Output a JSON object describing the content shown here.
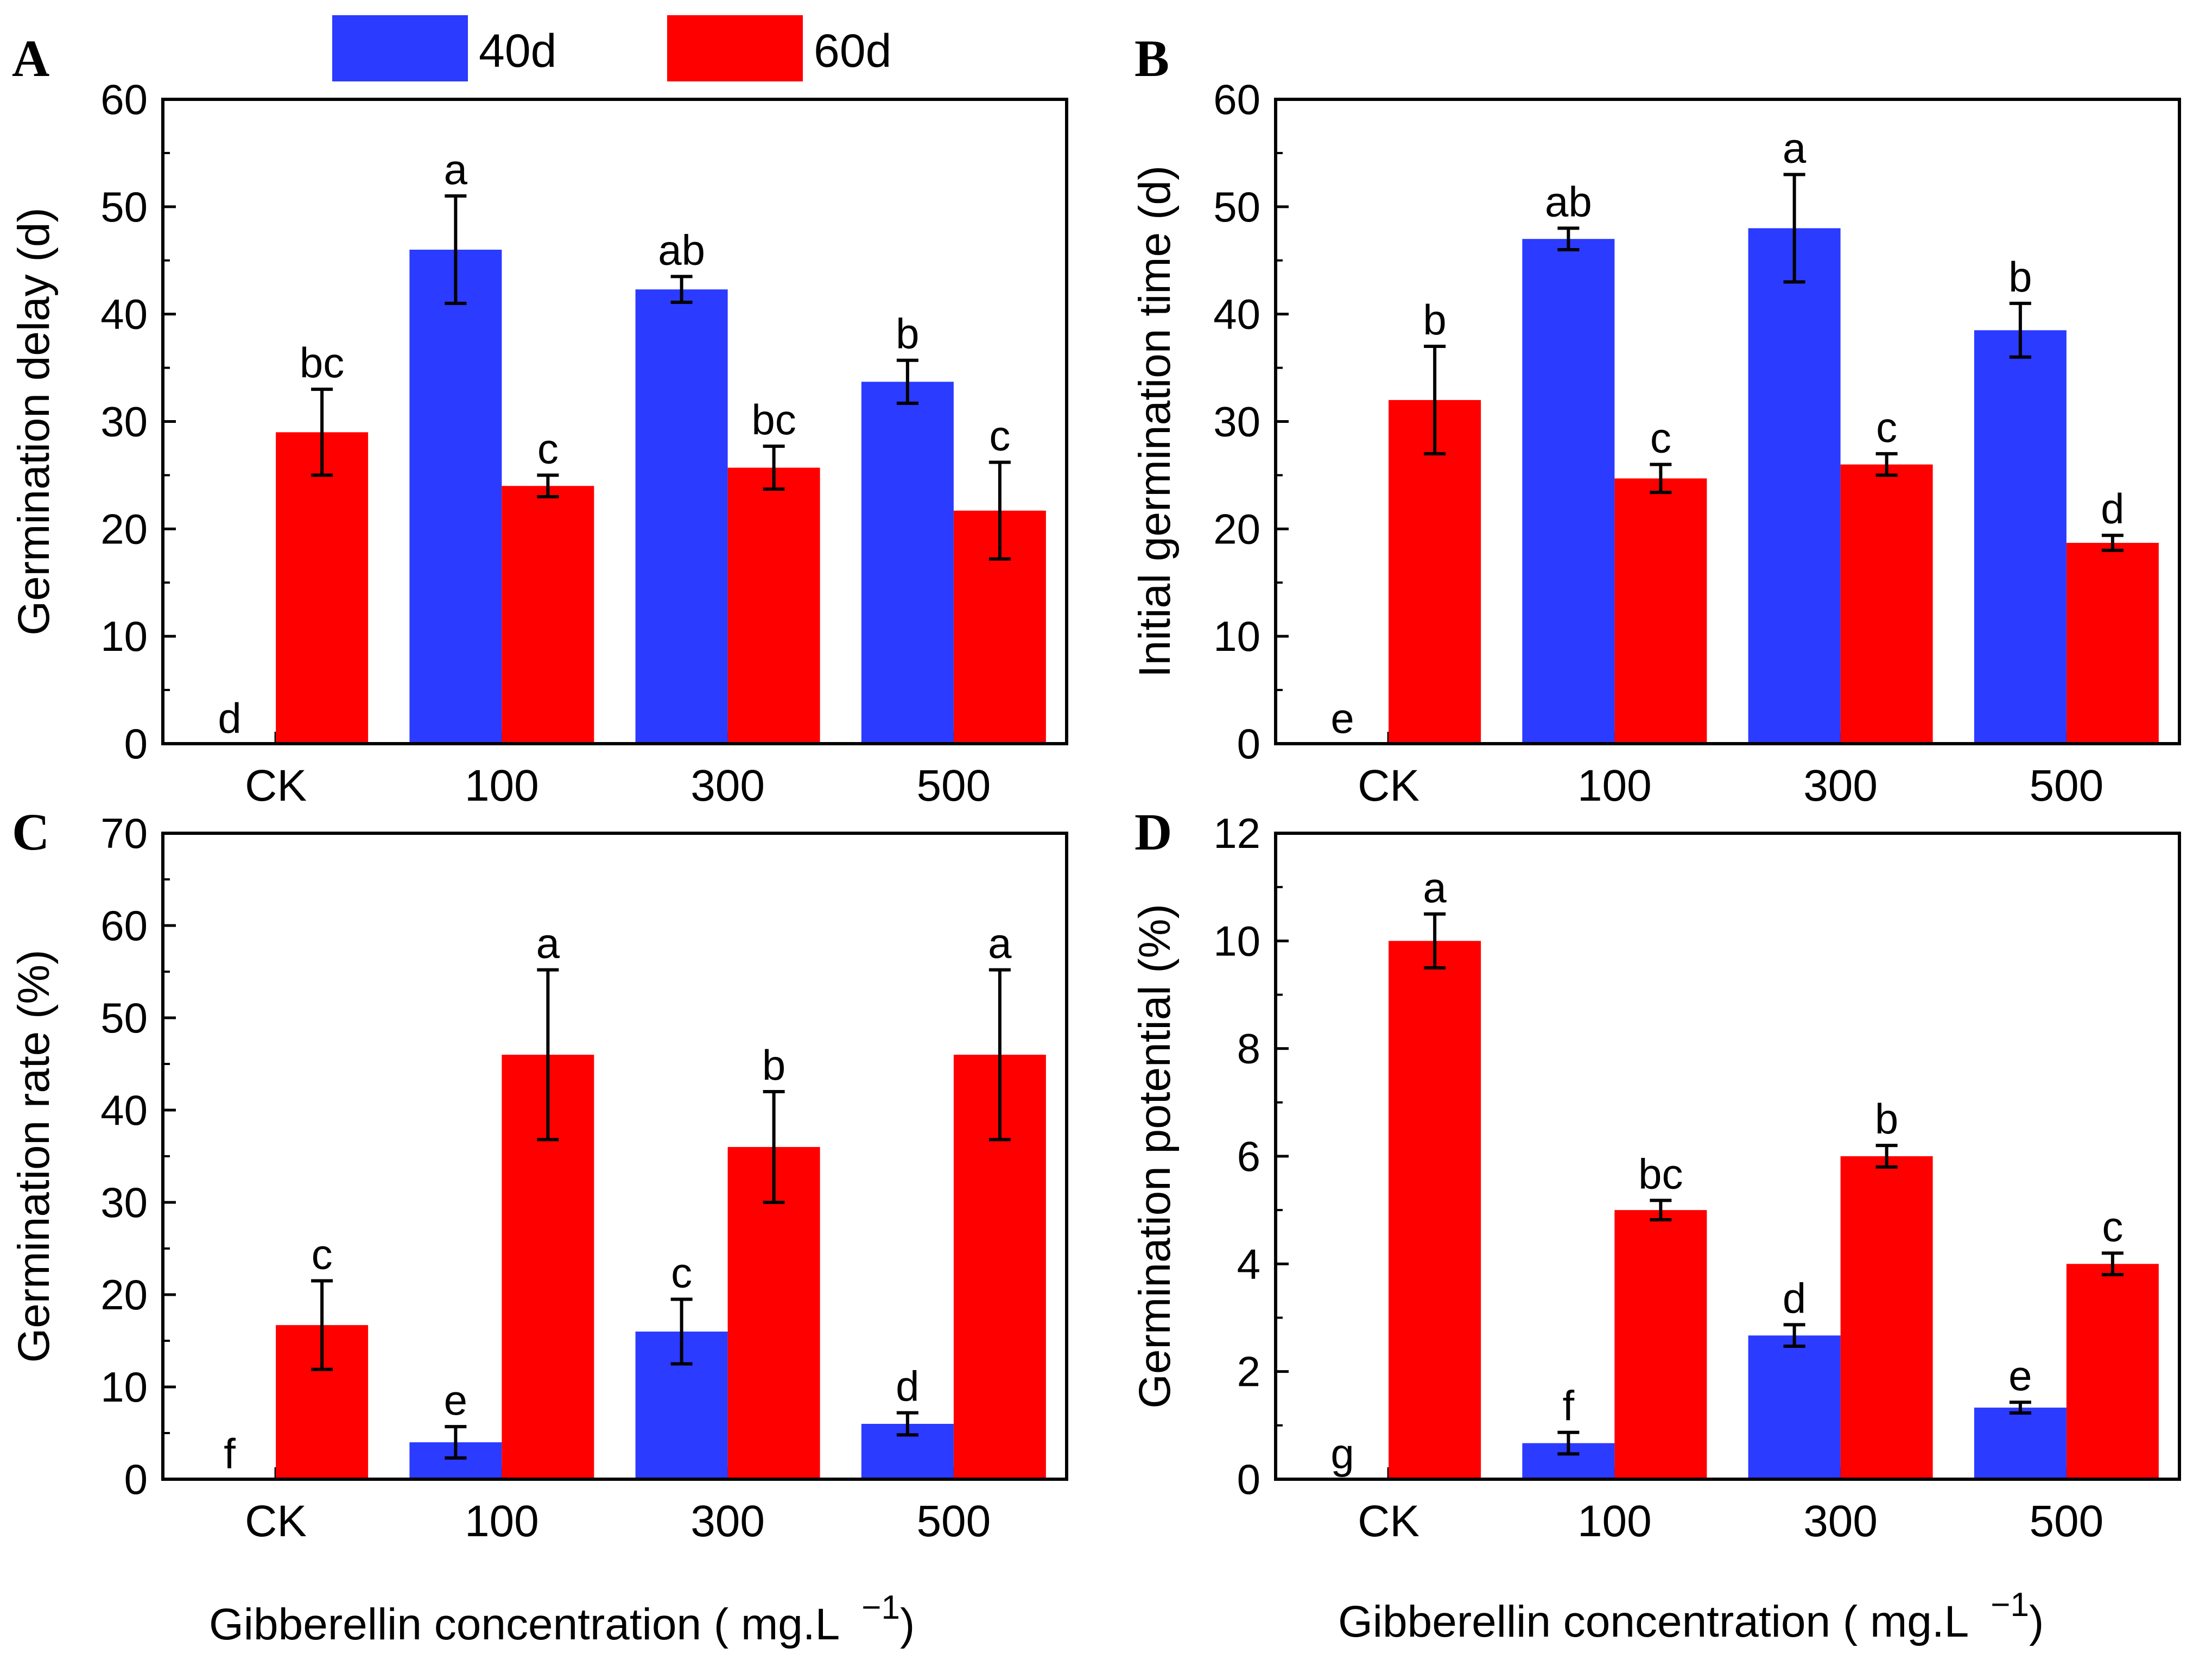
{
  "legend": {
    "items": [
      {
        "label": "40d",
        "color": "#2b3bff"
      },
      {
        "label": "60d",
        "color": "#ff0000"
      }
    ]
  },
  "x_axis_title": "Gibberellin concentration ( mg.L",
  "x_axis_superscript": "−1",
  "x_axis_close": ")",
  "chart_data": [
    {
      "panel": "A",
      "type": "bar",
      "ylabel": "Germination delay (d)",
      "ylim": [
        0,
        60
      ],
      "yticks": [
        0,
        10,
        20,
        30,
        40,
        50,
        60
      ],
      "categories": [
        "CK",
        "100",
        "300",
        "500"
      ],
      "series": [
        {
          "name": "40d",
          "values": [
            0,
            46,
            42.3,
            33.7
          ],
          "errors": [
            0,
            5,
            1.2,
            2
          ],
          "labels": [
            "d",
            "a",
            "ab",
            "b"
          ]
        },
        {
          "name": "60d",
          "values": [
            29,
            24,
            25.7,
            21.7
          ],
          "errors": [
            4,
            1,
            2,
            4.5
          ],
          "labels": [
            "bc",
            "c",
            "bc",
            "c"
          ]
        }
      ]
    },
    {
      "panel": "B",
      "type": "bar",
      "ylabel": "Initial germination time (d)",
      "ylim": [
        0,
        60
      ],
      "yticks": [
        0,
        10,
        20,
        30,
        40,
        50,
        60
      ],
      "categories": [
        "CK",
        "100",
        "300",
        "500"
      ],
      "series": [
        {
          "name": "40d",
          "values": [
            0,
            47,
            48,
            38.5
          ],
          "errors": [
            0,
            1,
            5,
            2.5
          ],
          "labels": [
            "e",
            "ab",
            "a",
            "b"
          ]
        },
        {
          "name": "60d",
          "values": [
            32,
            24.7,
            26,
            18.7
          ],
          "errors": [
            5,
            1.3,
            1,
            0.7
          ],
          "labels": [
            "b",
            "c",
            "c",
            "d"
          ]
        }
      ]
    },
    {
      "panel": "C",
      "type": "bar",
      "ylabel": "Germination rate (%)",
      "ylim": [
        0,
        70
      ],
      "yticks": [
        0,
        10,
        20,
        30,
        40,
        50,
        60,
        70
      ],
      "categories": [
        "CK",
        "100",
        "300",
        "500"
      ],
      "series": [
        {
          "name": "40d",
          "values": [
            0,
            4,
            16,
            6
          ],
          "errors": [
            0,
            1.7,
            3.5,
            1.2
          ],
          "labels": [
            "f",
            "e",
            "c",
            "d"
          ]
        },
        {
          "name": "60d",
          "values": [
            16.7,
            46,
            36,
            46
          ],
          "errors": [
            4.8,
            9.2,
            6,
            9.2
          ],
          "labels": [
            "c",
            "a",
            "b",
            "a"
          ]
        }
      ]
    },
    {
      "panel": "D",
      "type": "bar",
      "ylabel": "Germination potential (%)",
      "ylim": [
        0,
        12
      ],
      "yticks": [
        0,
        2,
        4,
        6,
        8,
        10,
        12
      ],
      "categories": [
        "CK",
        "100",
        "300",
        "500"
      ],
      "series": [
        {
          "name": "40d",
          "values": [
            0,
            0.67,
            2.67,
            1.33
          ],
          "errors": [
            0,
            0.2,
            0.2,
            0.1
          ],
          "labels": [
            "g",
            "f",
            "d",
            "e"
          ]
        },
        {
          "name": "60d",
          "values": [
            10,
            5,
            6,
            4
          ],
          "errors": [
            0.5,
            0.18,
            0.2,
            0.2
          ],
          "labels": [
            "a",
            "bc",
            "b",
            "c"
          ]
        }
      ]
    }
  ]
}
